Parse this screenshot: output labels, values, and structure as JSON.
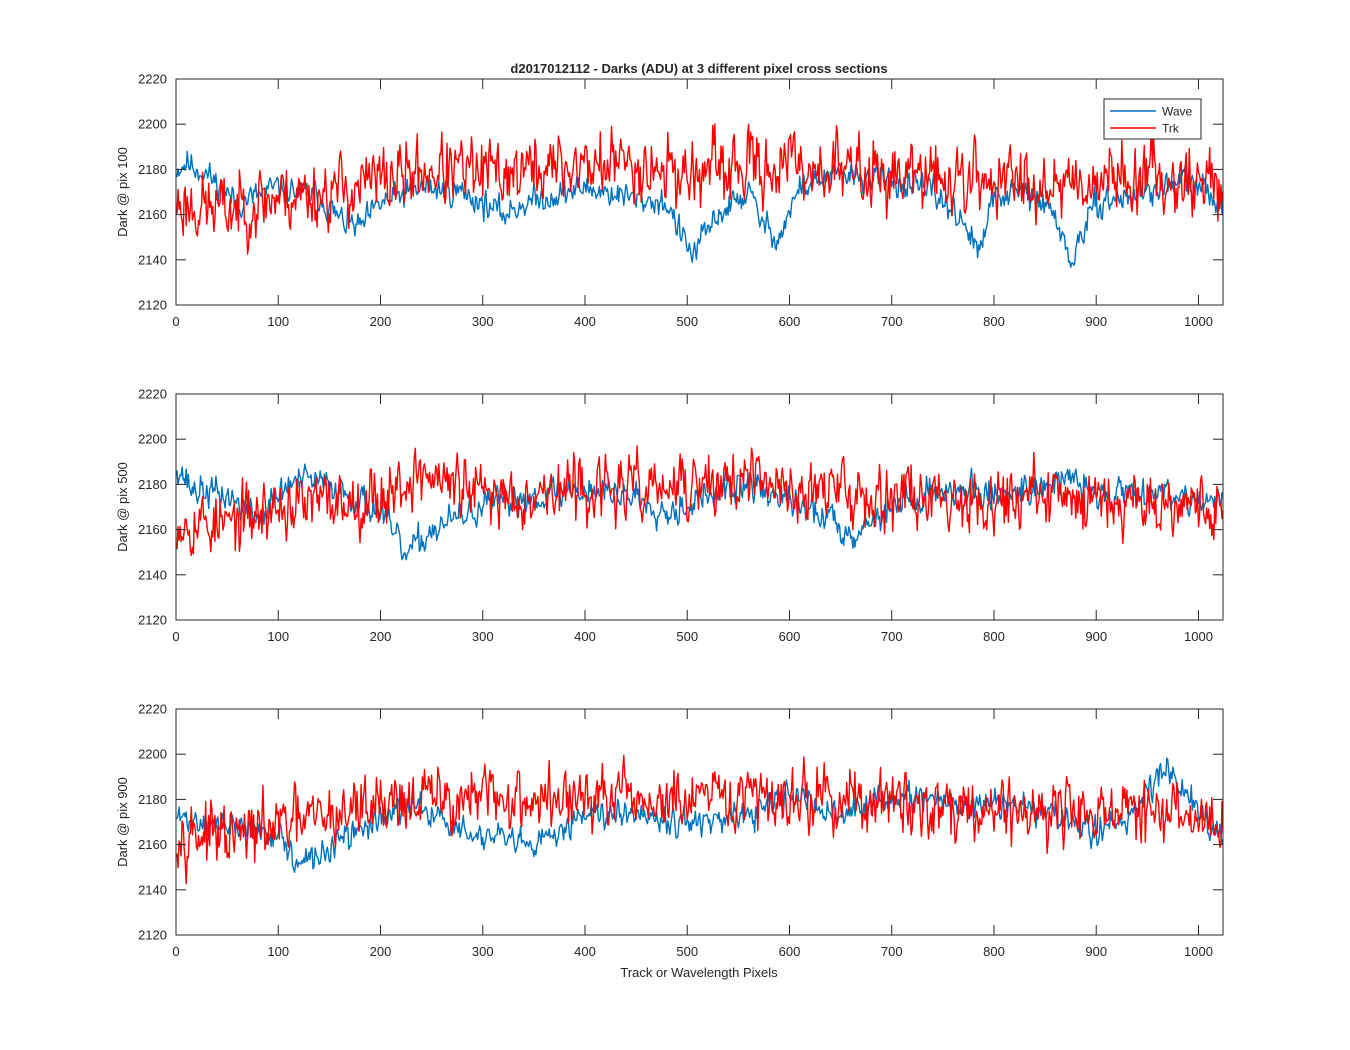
{
  "figure": {
    "title": "d2017012112 - Darks (ADU) at 3 different pixel cross sections",
    "xlabel": "Track or Wavelength Pixels"
  },
  "colors": {
    "wave": "#0072BD",
    "trk": "#FF0000",
    "axes": "#262626",
    "background": "#ffffff"
  },
  "chart_data": [
    {
      "type": "line",
      "ylabel": "Dark @ pix 100",
      "xlim": [
        0,
        1024
      ],
      "ylim": [
        2120,
        2220
      ],
      "xticks": [
        0,
        100,
        200,
        300,
        400,
        500,
        600,
        700,
        800,
        900,
        1000
      ],
      "yticks": [
        2120,
        2140,
        2160,
        2180,
        2200,
        2220
      ],
      "legend": {
        "position": "top-right",
        "entries": [
          "Wave",
          "Trk"
        ]
      },
      "series": [
        {
          "name": "Wave",
          "color": "#0072BD",
          "noise": 4.5,
          "seed": 11,
          "x": [
            0,
            10,
            30,
            60,
            100,
            140,
            160,
            180,
            200,
            240,
            280,
            320,
            340,
            400,
            440,
            480,
            495,
            505,
            530,
            560,
            575,
            590,
            610,
            650,
            700,
            740,
            770,
            785,
            800,
            830,
            860,
            875,
            885,
            900,
            950,
            990,
            1024
          ],
          "values": [
            2180,
            2183,
            2178,
            2165,
            2172,
            2168,
            2158,
            2154,
            2165,
            2172,
            2170,
            2160,
            2165,
            2172,
            2168,
            2165,
            2150,
            2142,
            2160,
            2170,
            2155,
            2150,
            2172,
            2178,
            2175,
            2170,
            2158,
            2142,
            2168,
            2170,
            2160,
            2138,
            2150,
            2165,
            2170,
            2175,
            2165
          ]
        },
        {
          "name": "Trk",
          "color": "#FF0000",
          "noise": 11,
          "seed": 23,
          "x": [
            0,
            50,
            100,
            150,
            200,
            250,
            300,
            350,
            400,
            450,
            500,
            550,
            600,
            650,
            700,
            750,
            800,
            850,
            900,
            950,
            1000,
            1024
          ],
          "values": [
            2165,
            2162,
            2168,
            2170,
            2175,
            2180,
            2178,
            2180,
            2182,
            2183,
            2178,
            2180,
            2182,
            2180,
            2178,
            2176,
            2175,
            2175,
            2176,
            2178,
            2175,
            2173
          ]
        }
      ]
    },
    {
      "type": "line",
      "ylabel": "Dark @ pix 500",
      "xlim": [
        0,
        1024
      ],
      "ylim": [
        2120,
        2220
      ],
      "xticks": [
        0,
        100,
        200,
        300,
        400,
        500,
        600,
        700,
        800,
        900,
        1000
      ],
      "yticks": [
        2120,
        2140,
        2160,
        2180,
        2200,
        2220
      ],
      "series": [
        {
          "name": "Wave",
          "color": "#0072BD",
          "noise": 5,
          "seed": 37,
          "x": [
            0,
            15,
            50,
            80,
            110,
            130,
            160,
            200,
            225,
            250,
            300,
            350,
            400,
            450,
            480,
            520,
            560,
            600,
            640,
            660,
            700,
            750,
            800,
            850,
            880,
            900,
            950,
            1024
          ],
          "values": [
            2190,
            2178,
            2175,
            2165,
            2180,
            2182,
            2178,
            2168,
            2148,
            2160,
            2170,
            2175,
            2178,
            2175,
            2168,
            2175,
            2180,
            2172,
            2165,
            2158,
            2170,
            2178,
            2175,
            2180,
            2182,
            2175,
            2178,
            2172
          ]
        },
        {
          "name": "Trk",
          "color": "#FF0000",
          "noise": 10,
          "seed": 53,
          "x": [
            0,
            50,
            100,
            150,
            200,
            240,
            300,
            400,
            500,
            550,
            600,
            700,
            800,
            900,
            1000,
            1024
          ],
          "values": [
            2165,
            2162,
            2170,
            2172,
            2175,
            2185,
            2175,
            2178,
            2178,
            2182,
            2178,
            2176,
            2174,
            2175,
            2172,
            2168
          ]
        }
      ]
    },
    {
      "type": "line",
      "ylabel": "Dark @ pix 900",
      "xlim": [
        0,
        1024
      ],
      "ylim": [
        2120,
        2220
      ],
      "xticks": [
        0,
        100,
        200,
        300,
        400,
        500,
        600,
        700,
        800,
        900,
        1000
      ],
      "yticks": [
        2120,
        2140,
        2160,
        2180,
        2200,
        2220
      ],
      "series": [
        {
          "name": "Wave",
          "color": "#0072BD",
          "noise": 4.5,
          "seed": 71,
          "x": [
            0,
            50,
            100,
            120,
            150,
            200,
            240,
            280,
            320,
            350,
            400,
            450,
            500,
            550,
            600,
            650,
            700,
            750,
            800,
            850,
            900,
            930,
            970,
            1000,
            1024
          ],
          "values": [
            2172,
            2168,
            2165,
            2150,
            2158,
            2172,
            2178,
            2165,
            2162,
            2158,
            2175,
            2175,
            2170,
            2170,
            2182,
            2172,
            2182,
            2178,
            2178,
            2175,
            2165,
            2172,
            2195,
            2175,
            2165
          ]
        },
        {
          "name": "Trk",
          "color": "#FF0000",
          "noise": 10,
          "seed": 97,
          "x": [
            0,
            50,
            100,
            150,
            200,
            300,
            400,
            500,
            600,
            700,
            800,
            900,
            1000,
            1024
          ],
          "values": [
            2168,
            2162,
            2168,
            2172,
            2180,
            2180,
            2180,
            2178,
            2182,
            2178,
            2176,
            2175,
            2172,
            2168
          ]
        }
      ]
    }
  ]
}
